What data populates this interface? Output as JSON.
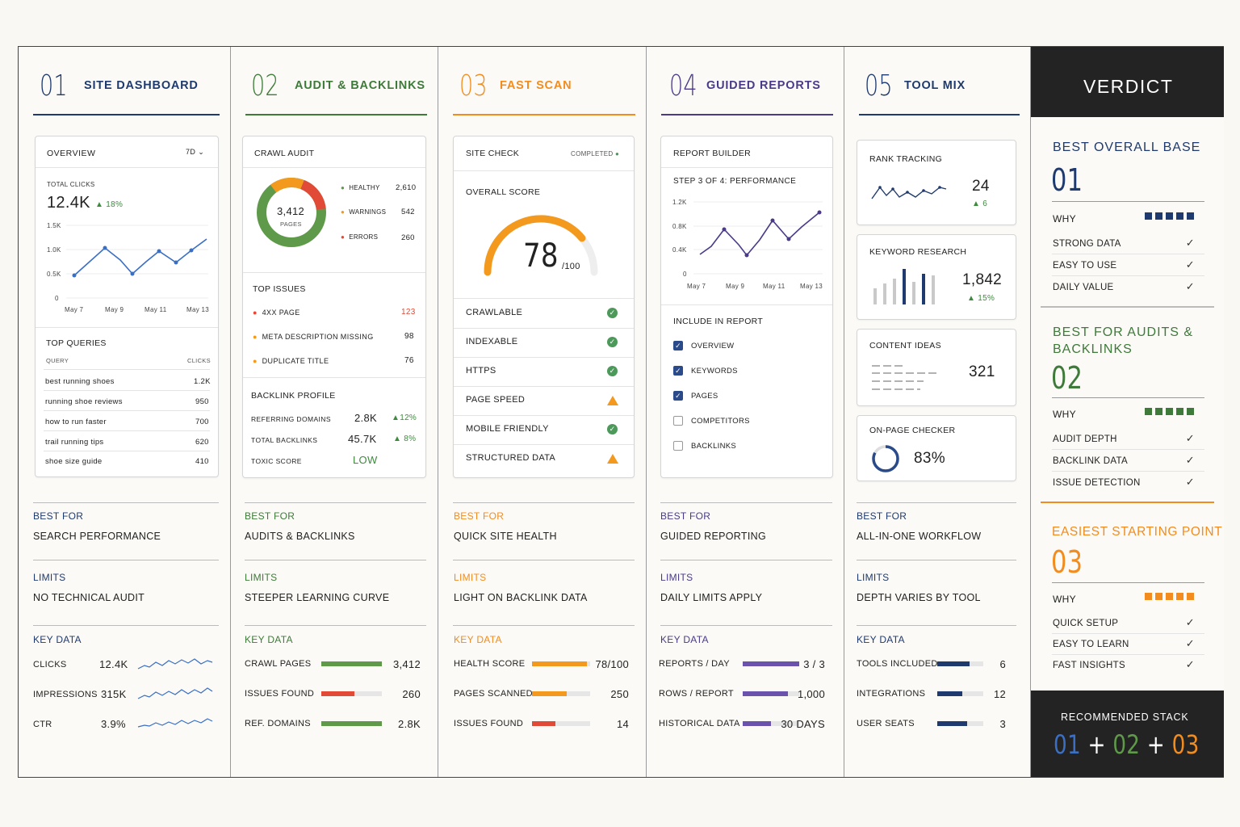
{
  "colors": {
    "blue": "#1f3a6e",
    "green": "#3e7a3a",
    "orange": "#f28c1e",
    "purple": "#4b3a8a",
    "navy": "#1f3a6e",
    "dark": "#232323"
  },
  "col1": {
    "num": "01",
    "title": "SITE DASHBOARD",
    "overview": {
      "label": "OVERVIEW",
      "range": "7D",
      "total_label": "TOTAL CLICKS",
      "total": "12.4K",
      "change": "18%",
      "yticks": [
        "1.5K",
        "1.0K",
        "0.5K",
        "0"
      ],
      "xticks": [
        "May 7",
        "May 9",
        "May 11",
        "May 13"
      ]
    },
    "queries": {
      "label": "TOP QUERIES",
      "h1": "QUERY",
      "h2": "CLICKS",
      "rows": [
        {
          "q": "best running shoes",
          "v": "1.2K"
        },
        {
          "q": "running shoe reviews",
          "v": "950"
        },
        {
          "q": "how to run faster",
          "v": "700"
        },
        {
          "q": "trail running tips",
          "v": "620"
        },
        {
          "q": "shoe size guide",
          "v": "410"
        }
      ]
    },
    "best_label": "BEST FOR",
    "best": "SEARCH PERFORMANCE",
    "limits_label": "LIMITS",
    "limits": "NO TECHNICAL AUDIT",
    "key_label": "KEY DATA",
    "key": [
      {
        "l": "CLICKS",
        "v": "12.4K"
      },
      {
        "l": "IMPRESSIONS",
        "v": "315K"
      },
      {
        "l": "CTR",
        "v": "3.9%"
      }
    ]
  },
  "col2": {
    "num": "02",
    "title": "AUDIT & BACKLINKS",
    "crawl": {
      "label": "CRAWL AUDIT",
      "pages": "3,412",
      "pages_label": "PAGES",
      "legend": [
        {
          "l": "HEALTHY",
          "v": "2,610"
        },
        {
          "l": "WARNINGS",
          "v": "542"
        },
        {
          "l": "ERRORS",
          "v": "260"
        }
      ]
    },
    "issues": {
      "label": "TOP ISSUES",
      "rows": [
        {
          "l": "4XX PAGE",
          "v": "123"
        },
        {
          "l": "META DESCRIPTION MISSING",
          "v": "98"
        },
        {
          "l": "DUPLICATE TITLE",
          "v": "76"
        }
      ]
    },
    "backlink": {
      "label": "BACKLINK PROFILE",
      "rows": [
        {
          "l": "REFERRING DOMAINS",
          "v": "2.8K",
          "c": "12%"
        },
        {
          "l": "TOTAL BACKLINKS",
          "v": "45.7K",
          "c": "8%"
        },
        {
          "l": "TOXIC SCORE",
          "v": "LOW",
          "c": ""
        }
      ]
    },
    "best_label": "BEST FOR",
    "best": "AUDITS & BACKLINKS",
    "limits_label": "LIMITS",
    "limits": "STEEPER LEARNING CURVE",
    "key_label": "KEY DATA",
    "key": [
      {
        "l": "CRAWL PAGES",
        "v": "3,412",
        "f": 1.0
      },
      {
        "l": "ISSUES FOUND",
        "v": "260",
        "f": 0.55
      },
      {
        "l": "REF. DOMAINS",
        "v": "2.8K",
        "f": 1.0
      }
    ]
  },
  "col3": {
    "num": "03",
    "title": "FAST SCAN",
    "check": {
      "label": "SITE CHECK",
      "status": "COMPLETED",
      "score_label": "OVERALL SCORE",
      "score": "78",
      "of": "/100",
      "score_value": 78,
      "rows": [
        "CRAWLABLE",
        "INDEXABLE",
        "HTTPS",
        "PAGE SPEED",
        "MOBILE FRIENDLY",
        "STRUCTURED DATA"
      ],
      "states": [
        "ok",
        "ok",
        "ok",
        "warn",
        "ok",
        "warn"
      ]
    },
    "best_label": "BEST FOR",
    "best": "QUICK SITE HEALTH",
    "limits_label": "LIMITS",
    "limits": "LIGHT ON BACKLINK DATA",
    "key_label": "KEY DATA",
    "key": [
      {
        "l": "HEALTH SCORE",
        "v": "78/100",
        "f": 0.95
      },
      {
        "l": "PAGES SCANNED",
        "v": "250",
        "f": 0.6
      },
      {
        "l": "ISSUES FOUND",
        "v": "14",
        "f": 0.4
      }
    ]
  },
  "col4": {
    "num": "04",
    "title": "GUIDED REPORTS",
    "builder": {
      "label": "REPORT BUILDER",
      "step": "STEP 3 OF 4: PERFORMANCE",
      "yticks": [
        "1.2K",
        "0.8K",
        "0.4K",
        "0"
      ],
      "xticks": [
        "May 7",
        "May 9",
        "May 11",
        "May 13"
      ]
    },
    "include": {
      "label": "INCLUDE IN REPORT",
      "items": [
        {
          "l": "OVERVIEW",
          "on": true
        },
        {
          "l": "KEYWORDS",
          "on": true
        },
        {
          "l": "PAGES",
          "on": true
        },
        {
          "l": "COMPETITORS",
          "on": false
        },
        {
          "l": "BACKLINKS",
          "on": false
        }
      ]
    },
    "best_label": "BEST FOR",
    "best": "GUIDED REPORTING",
    "limits_label": "LIMITS",
    "limits": "DAILY LIMITS APPLY",
    "key_label": "KEY DATA",
    "key": [
      {
        "l": "REPORTS / DAY",
        "v": "3 / 3",
        "f": 1.0
      },
      {
        "l": "ROWS / REPORT",
        "v": "1,000",
        "f": 0.8
      },
      {
        "l": "HISTORICAL DATA",
        "v": "30 DAYS",
        "f": 0.5
      }
    ]
  },
  "col5": {
    "num": "05",
    "title": "TOOL MIX",
    "rank": {
      "label": "RANK TRACKING",
      "v": "24",
      "c": "6"
    },
    "kw": {
      "label": "KEYWORD RESEARCH",
      "v": "1,842",
      "c": "15%"
    },
    "content": {
      "label": "CONTENT IDEAS",
      "v": "321"
    },
    "onpage": {
      "label": "ON-PAGE CHECKER",
      "v": "83%",
      "value": 83
    },
    "best_label": "BEST FOR",
    "best": "ALL-IN-ONE WORKFLOW",
    "limits_label": "LIMITS",
    "limits": "DEPTH VARIES BY TOOL",
    "key_label": "KEY DATA",
    "key": [
      {
        "l": "TOOLS INCLUDED",
        "v": "6",
        "f": 0.7
      },
      {
        "l": "INTEGRATIONS",
        "v": "12",
        "f": 0.55
      },
      {
        "l": "USER SEATS",
        "v": "3",
        "f": 0.65
      }
    ]
  },
  "verdict": {
    "title": "VERDICT",
    "s1": {
      "title": "BEST OVERALL BASE",
      "num": "01",
      "why": "WHY",
      "items": [
        "STRONG DATA",
        "EASY TO USE",
        "DAILY VALUE"
      ]
    },
    "s2": {
      "title1": "BEST FOR AUDITS &",
      "title2": "BACKLINKS",
      "num": "02",
      "why": "WHY",
      "items": [
        "AUDIT DEPTH",
        "BACKLINK DATA",
        "ISSUE DETECTION"
      ]
    },
    "s3": {
      "title": "EASIEST STARTING POINT",
      "num": "03",
      "why": "WHY",
      "items": [
        "QUICK SETUP",
        "EASY TO LEARN",
        "FAST INSIGHTS"
      ]
    },
    "stack_label": "RECOMMENDED STACK",
    "stack": [
      "01",
      "02",
      "03"
    ],
    "plus": "+"
  }
}
